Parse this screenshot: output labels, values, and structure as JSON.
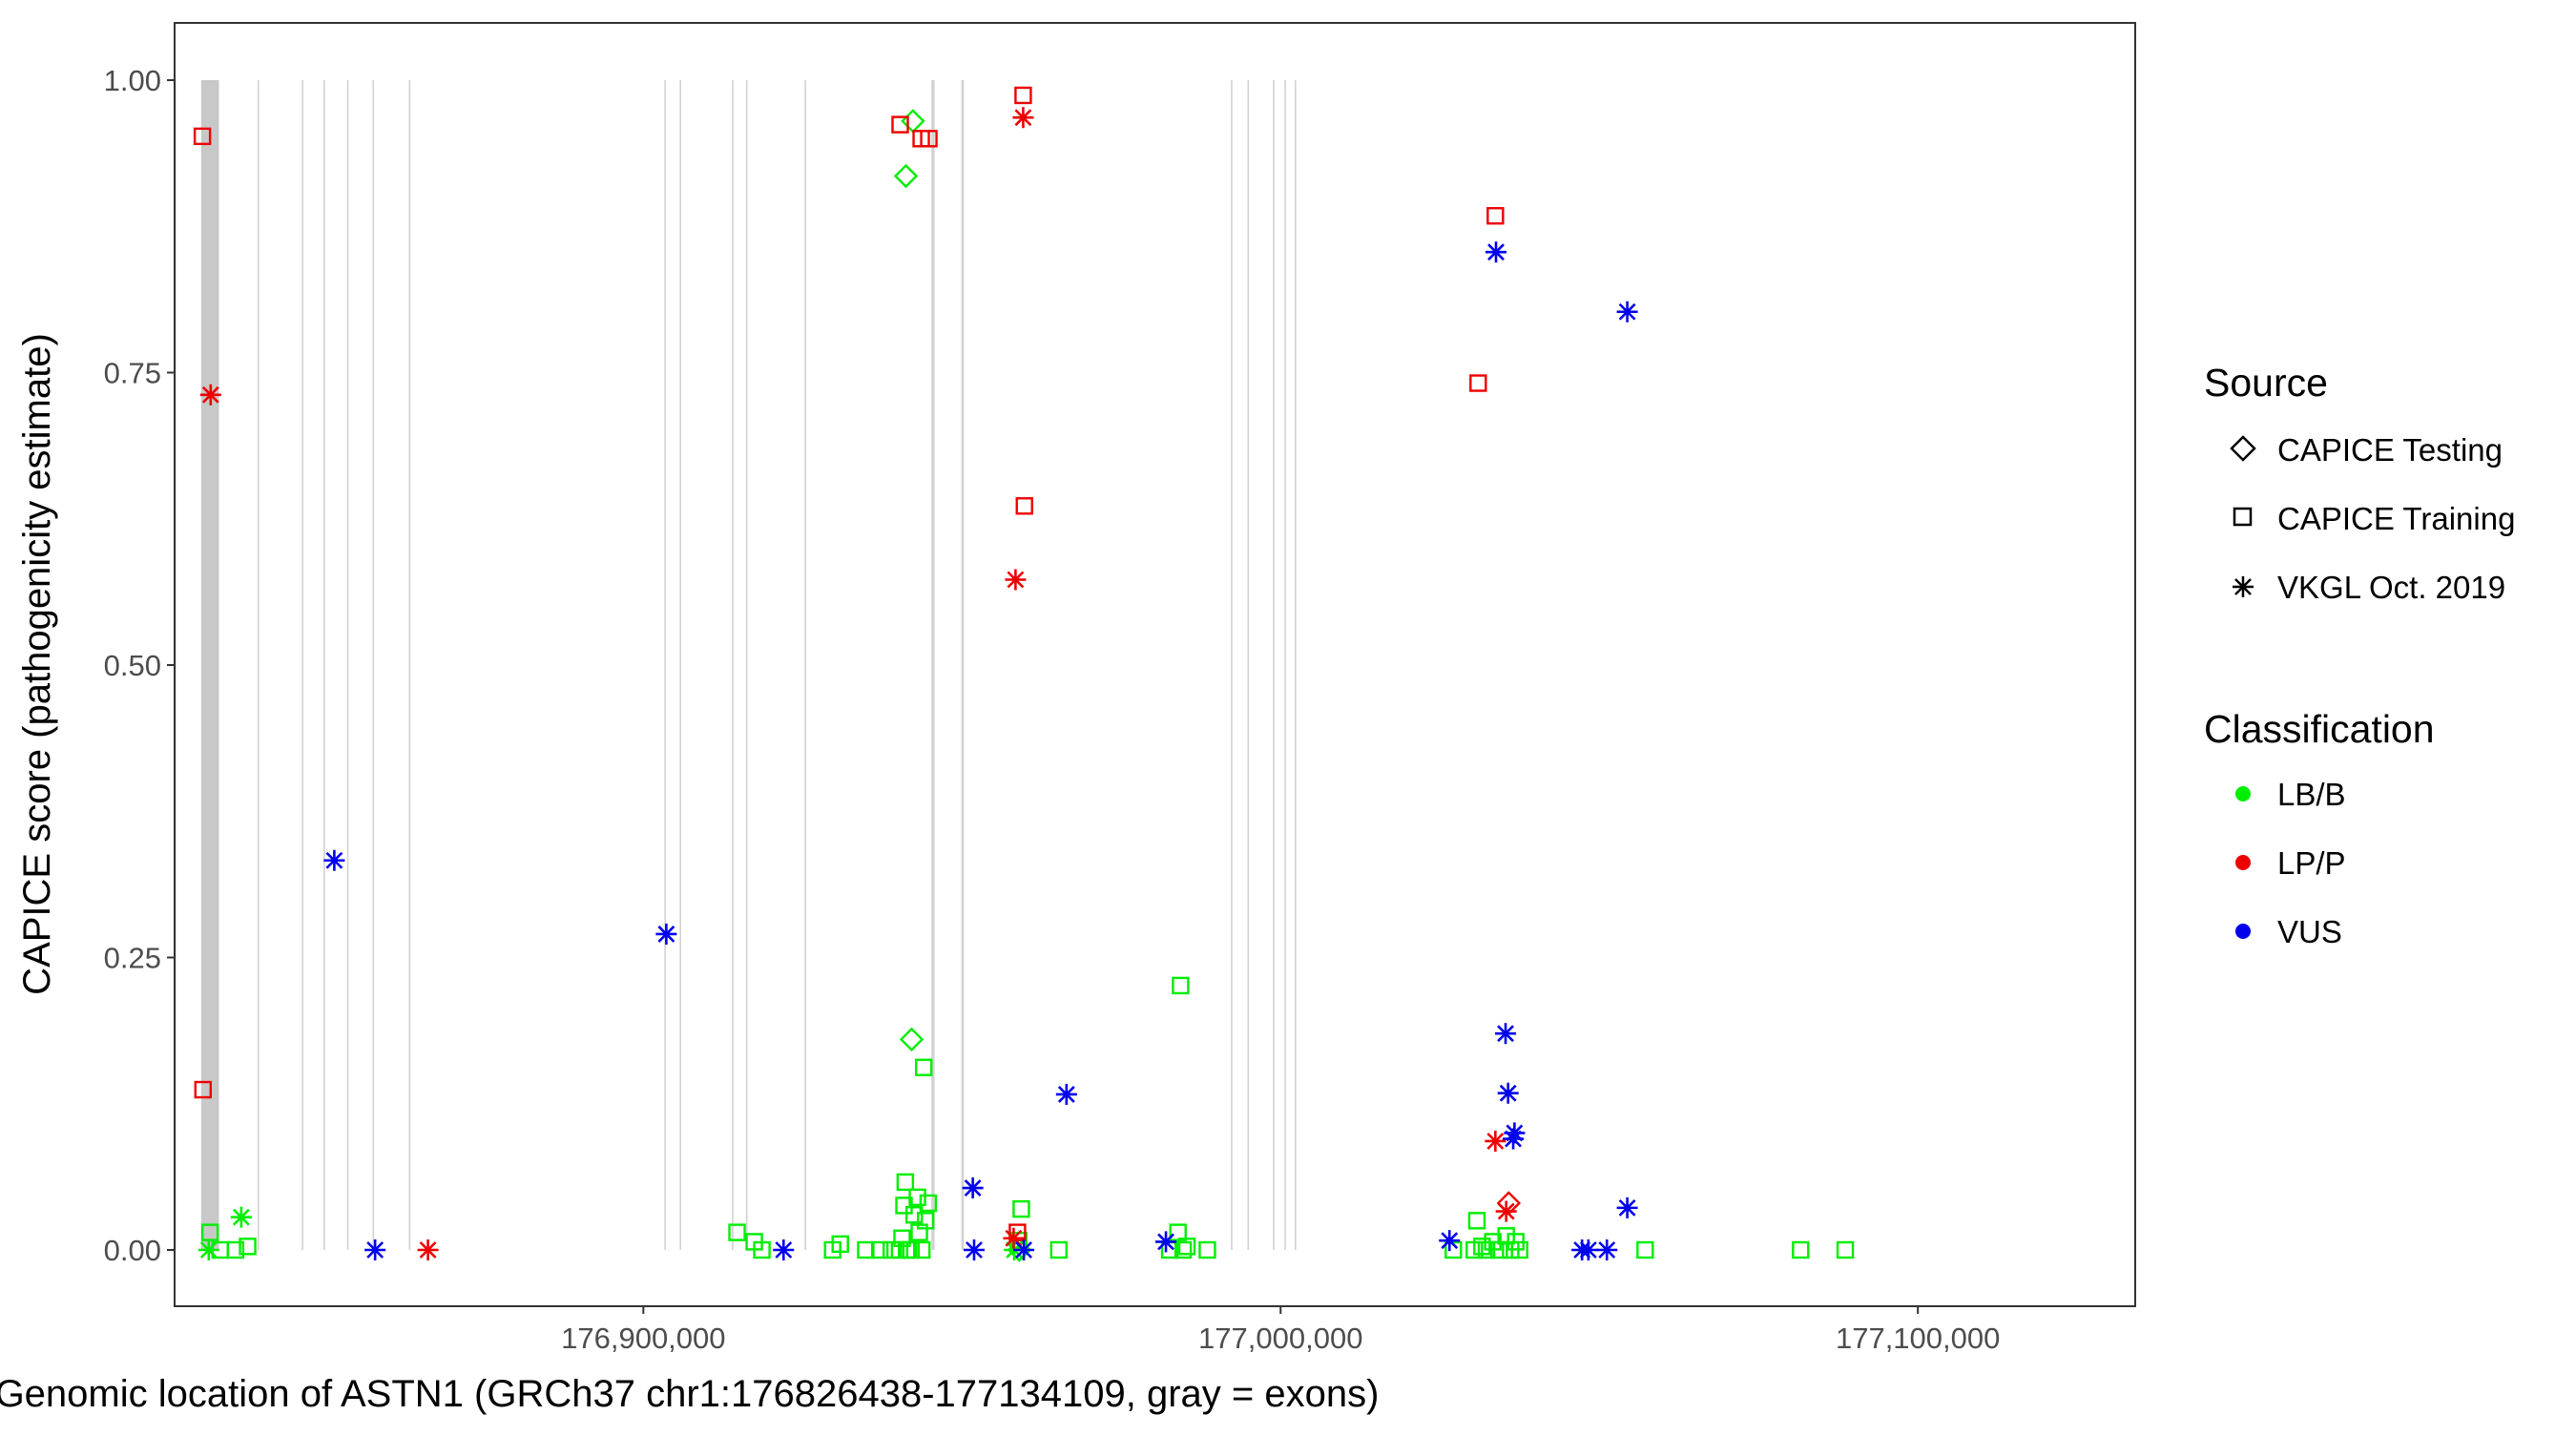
{
  "chart_data": {
    "type": "scatter",
    "xlabel": "Genomic location of ASTN1 (GRCh37 chr1:176826438-177134109, gray = exons)",
    "ylabel": "CAPICE score (pathogenicity estimate)",
    "xlim": [
      176826438,
      177134109
    ],
    "ylim": [
      0,
      1
    ],
    "x_ticks": [
      176900000,
      177000000,
      177100000
    ],
    "x_tick_labels": [
      "176,900,000",
      "177,000,000",
      "177,100,000"
    ],
    "y_ticks": [
      0,
      0.25,
      0.5,
      0.75,
      1.0
    ],
    "y_tick_labels": [
      "0.00",
      "0.25",
      "0.50",
      "0.75",
      "1.00"
    ],
    "grid": false,
    "legend_placement": "right",
    "exons": [
      {
        "start": 176826439,
        "end": 176826535
      },
      {
        "start": 176830600,
        "end": 176833400
      },
      {
        "start": 176839450,
        "end": 176839550
      },
      {
        "start": 176846400,
        "end": 176846500
      },
      {
        "start": 176849800,
        "end": 176849900
      },
      {
        "start": 176853500,
        "end": 176853600
      },
      {
        "start": 176857500,
        "end": 176857600
      },
      {
        "start": 176863200,
        "end": 176863400
      },
      {
        "start": 176903300,
        "end": 176903400
      },
      {
        "start": 176905700,
        "end": 176905800
      },
      {
        "start": 176913900,
        "end": 176914000
      },
      {
        "start": 176916100,
        "end": 176916200
      },
      {
        "start": 176925300,
        "end": 176925400
      },
      {
        "start": 176945200,
        "end": 176945700
      },
      {
        "start": 176949900,
        "end": 176950300
      },
      {
        "start": 176992200,
        "end": 176992300
      },
      {
        "start": 176994800,
        "end": 176994900
      },
      {
        "start": 176998800,
        "end": 176998900
      },
      {
        "start": 177000600,
        "end": 177000700
      },
      {
        "start": 177002200,
        "end": 177002350
      },
      {
        "start": 177134000,
        "end": 177134109
      }
    ],
    "sources": [
      "CAPICE Testing",
      "CAPICE Training",
      "VKGL Oct. 2019"
    ],
    "classifications": [
      {
        "name": "LB/B",
        "color": "#00ee00"
      },
      {
        "name": "LP/P",
        "color": "#ee0000"
      },
      {
        "name": "VUS",
        "color": "#0000ee"
      }
    ],
    "series": [
      {
        "source": "CAPICE Testing",
        "classification": "LB/B",
        "points": [
          [
            176942300,
            0.965
          ],
          [
            176941200,
            0.918
          ],
          [
            176942100,
            0.18
          ],
          [
            176959000,
            0.0
          ]
        ]
      },
      {
        "source": "CAPICE Testing",
        "classification": "LP/P",
        "points": [
          [
            177035800,
            0.04
          ]
        ]
      },
      {
        "source": "CAPICE Training",
        "classification": "LB/B",
        "points": [
          [
            176832000,
            0.015
          ],
          [
            176833600,
            0.0
          ],
          [
            176836000,
            0.0
          ],
          [
            176837900,
            0.003
          ],
          [
            176914700,
            0.015
          ],
          [
            176917400,
            0.007
          ],
          [
            176918600,
            0.0
          ],
          [
            176929700,
            0.0
          ],
          [
            176930900,
            0.005
          ],
          [
            176934900,
            0.0
          ],
          [
            176937100,
            0.0
          ],
          [
            176938900,
            0.0
          ],
          [
            176940200,
            0.0
          ],
          [
            176940600,
            0.01
          ],
          [
            176940900,
            0.038
          ],
          [
            176941100,
            0.058
          ],
          [
            176941600,
            0.0
          ],
          [
            176942000,
            0.0
          ],
          [
            176942500,
            0.03
          ],
          [
            176943000,
            0.045
          ],
          [
            176943300,
            0.015
          ],
          [
            176943700,
            0.0
          ],
          [
            176944000,
            0.156
          ],
          [
            176944300,
            0.025
          ],
          [
            176944700,
            0.04
          ],
          [
            176958900,
            0.008
          ],
          [
            176959300,
            0.035
          ],
          [
            176965200,
            0.0
          ],
          [
            176982600,
            0.0
          ],
          [
            176983900,
            0.015
          ],
          [
            176984300,
            0.226
          ],
          [
            176984700,
            0.0
          ],
          [
            176985300,
            0.003
          ],
          [
            176988500,
            0.0
          ],
          [
            177027100,
            0.0
          ],
          [
            177030400,
            0.0
          ],
          [
            177030800,
            0.025
          ],
          [
            177031600,
            0.003
          ],
          [
            177032300,
            0.0
          ],
          [
            177033300,
            0.007
          ],
          [
            177034300,
            0.0
          ],
          [
            177035400,
            0.012
          ],
          [
            177036100,
            0.0
          ],
          [
            177036900,
            0.007
          ],
          [
            177037500,
            0.0
          ],
          [
            177057200,
            0.0
          ],
          [
            177081600,
            0.0
          ],
          [
            177088600,
            0.0
          ]
        ]
      },
      {
        "source": "CAPICE Training",
        "classification": "LP/P",
        "points": [
          [
            176830800,
            0.952
          ],
          [
            176830900,
            0.137
          ],
          [
            176940300,
            0.962
          ],
          [
            176943600,
            0.95
          ],
          [
            176944800,
            0.95
          ],
          [
            176959600,
            0.987
          ],
          [
            176959800,
            0.636
          ],
          [
            177031000,
            0.741
          ],
          [
            177033700,
            0.884
          ],
          [
            176958700,
            0.015
          ]
        ]
      },
      {
        "source": "VKGL Oct. 2019",
        "classification": "LB/B",
        "points": [
          [
            176836900,
            0.028
          ],
          [
            176831800,
            0.0
          ],
          [
            176958200,
            0.0
          ]
        ]
      },
      {
        "source": "VKGL Oct. 2019",
        "classification": "LP/P",
        "points": [
          [
            176832100,
            0.731
          ],
          [
            176866200,
            0.0
          ],
          [
            176958400,
            0.573
          ],
          [
            176959600,
            0.968
          ],
          [
            176958100,
            0.01
          ],
          [
            177033700,
            0.093
          ],
          [
            177035400,
            0.033
          ]
        ]
      },
      {
        "source": "VKGL Oct. 2019",
        "classification": "VUS",
        "points": [
          [
            176851500,
            0.333
          ],
          [
            176857900,
            0.0
          ],
          [
            176903600,
            0.27
          ],
          [
            176922000,
            0.0
          ],
          [
            176951700,
            0.053
          ],
          [
            176951900,
            0.0
          ],
          [
            176959700,
            0.0
          ],
          [
            176966400,
            0.133
          ],
          [
            176982000,
            0.007
          ],
          [
            177033800,
            0.853
          ],
          [
            177035300,
            0.185
          ],
          [
            177035700,
            0.134
          ],
          [
            177036700,
            0.1
          ],
          [
            177036500,
            0.095
          ],
          [
            177026500,
            0.008
          ],
          [
            177047300,
            0.0
          ],
          [
            177048300,
            0.0
          ],
          [
            177051200,
            0.0
          ],
          [
            177054400,
            0.802
          ],
          [
            177054400,
            0.036
          ]
        ]
      }
    ]
  },
  "legend": {
    "source_title": "Source",
    "source_items": [
      "CAPICE Testing",
      "CAPICE Training",
      "VKGL Oct. 2019"
    ],
    "class_title": "Classification",
    "class_items": [
      "LB/B",
      "LP/P",
      "VUS"
    ]
  }
}
